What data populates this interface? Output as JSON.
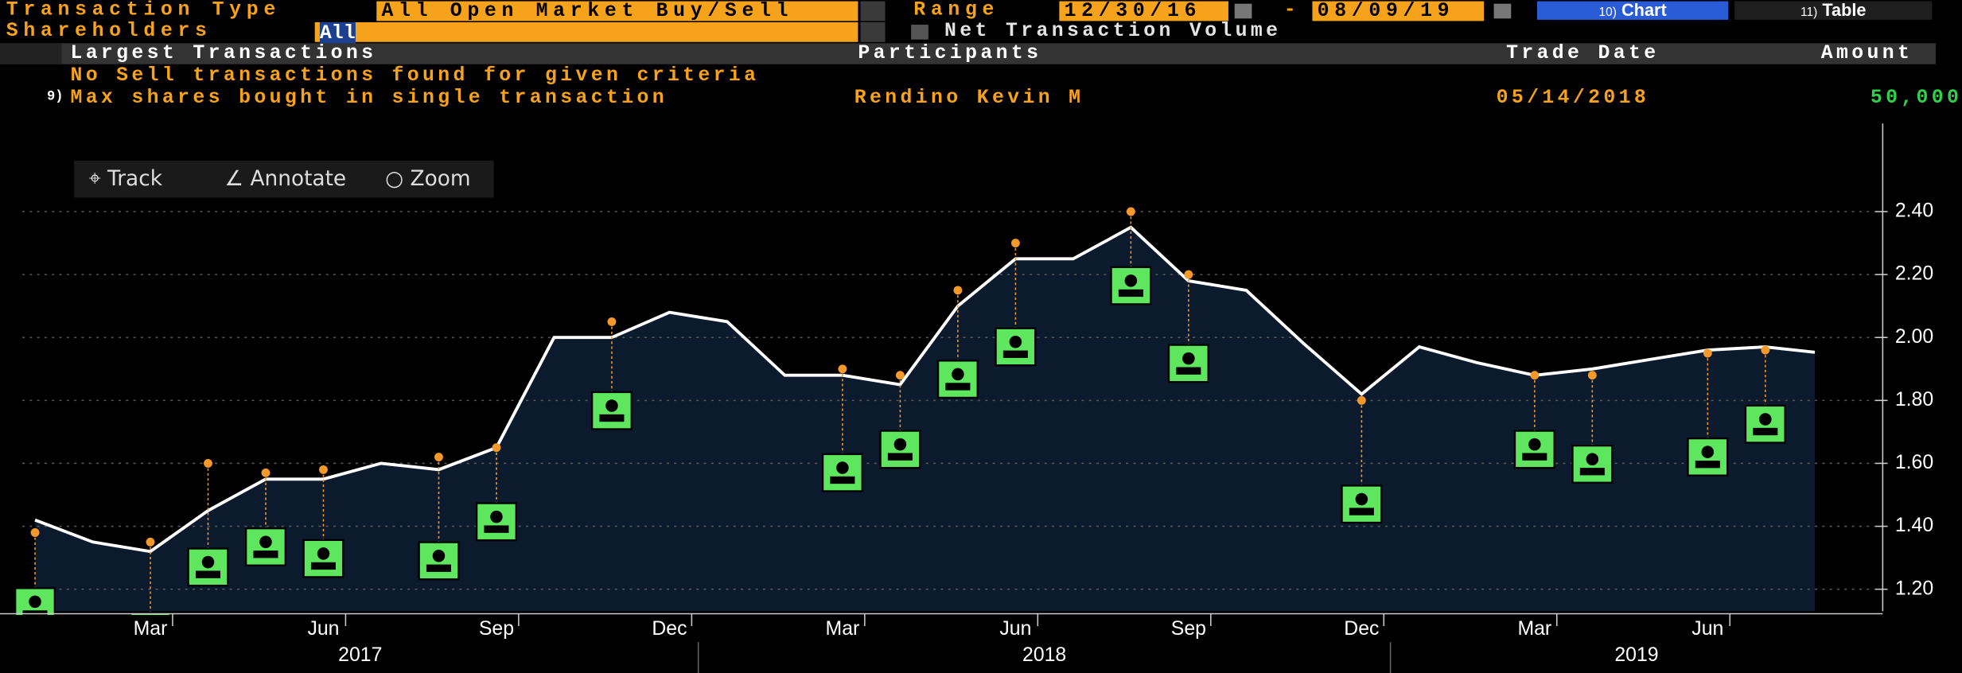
{
  "header": {
    "transaction_type_label": "Transaction Type",
    "transaction_type": "All Open Market Buy/Sell",
    "range_label": "Range",
    "range_start": "12/30/16",
    "range_sep": "-",
    "range_end": "08/09/19",
    "buttons": [
      {
        "number": "10)",
        "label": "Chart"
      },
      {
        "number": "11)",
        "label": "Table"
      }
    ],
    "shareholders_label": "Shareholders",
    "shareholders": "All",
    "net_volume": "Net Transaction Volume"
  },
  "table": {
    "columns": [
      "Largest Transactions",
      "Participants",
      "Trade Date",
      "Amount"
    ],
    "message": "No Sell transactions found for given criteria",
    "row": {
      "number": "9)",
      "text": "Max shares bought in single transaction",
      "participant": "Rendino Kevin M",
      "date": "05/14/2018",
      "amount": "50,000"
    }
  },
  "toolbar": [
    "Track",
    "Annotate",
    "Zoom"
  ],
  "chart_data": {
    "type": "area",
    "x": [
      "2017-01",
      "2017-02",
      "2017-03",
      "2017-04",
      "2017-05",
      "2017-06",
      "2017-07",
      "2017-08",
      "2017-09",
      "2017-10",
      "2017-11",
      "2017-12",
      "2018-01",
      "2018-02",
      "2018-03",
      "2018-04",
      "2018-05",
      "2018-06",
      "2018-07",
      "2018-08",
      "2018-09",
      "2018-10",
      "2018-11",
      "2018-12",
      "2019-01",
      "2019-02",
      "2019-03",
      "2019-04",
      "2019-05",
      "2019-06",
      "2019-07",
      "2019-08"
    ],
    "values": [
      1.42,
      1.35,
      1.32,
      1.45,
      1.55,
      1.55,
      1.6,
      1.58,
      1.65,
      2.0,
      2.0,
      2.08,
      2.05,
      1.88,
      1.88,
      1.85,
      2.1,
      2.25,
      2.25,
      2.35,
      2.18,
      2.15,
      1.98,
      1.82,
      1.97,
      1.92,
      1.88,
      1.9,
      1.93,
      1.96,
      1.97,
      1.95
    ],
    "color": "#ffffff",
    "fill": "#0c1a2e",
    "markers": {
      "x": [
        "2017-01",
        "2017-03",
        "2017-04",
        "2017-05",
        "2017-06",
        "2017-08",
        "2017-09",
        "2017-11",
        "2018-03",
        "2018-04",
        "2018-05",
        "2018-06",
        "2018-08",
        "2018-09",
        "2018-12",
        "2019-03",
        "2019-04",
        "2019-06",
        "2019-07"
      ],
      "values": [
        1.38,
        1.35,
        1.6,
        1.57,
        1.58,
        1.62,
        1.65,
        2.05,
        1.9,
        1.88,
        2.15,
        2.3,
        2.4,
        2.2,
        1.8,
        1.88,
        1.88,
        1.95,
        1.96
      ],
      "color": "#f59a2a",
      "icon_color": "#5ee65e"
    },
    "xlim": [
      "2017-01",
      "2019-09"
    ],
    "xticks": [
      {
        "value": "2017-03",
        "label": "Mar"
      },
      {
        "value": "2017-06",
        "label": "Jun"
      },
      {
        "value": "2017-09",
        "label": "Sep"
      },
      {
        "value": "2017-12",
        "label": "Dec"
      },
      {
        "value": "2018-03",
        "label": "Mar"
      },
      {
        "value": "2018-06",
        "label": "Jun"
      },
      {
        "value": "2018-09",
        "label": "Sep"
      },
      {
        "value": "2018-12",
        "label": "Dec"
      },
      {
        "value": "2019-03",
        "label": "Mar"
      },
      {
        "value": "2019-06",
        "label": "Jun"
      }
    ],
    "year_labels": [
      "2017",
      "2018",
      "2019"
    ],
    "ylim": [
      1.13,
      2.68
    ],
    "yticks": [
      {
        "value": 1.2,
        "label": "1.20"
      },
      {
        "value": 1.4,
        "label": "1.40"
      },
      {
        "value": 1.6,
        "label": "1.60"
      },
      {
        "value": 1.8,
        "label": "1.80"
      },
      {
        "value": 2.0,
        "label": "2.00"
      },
      {
        "value": 2.2,
        "label": "2.20"
      },
      {
        "value": 2.4,
        "label": "2.40"
      }
    ],
    "grid": true
  }
}
